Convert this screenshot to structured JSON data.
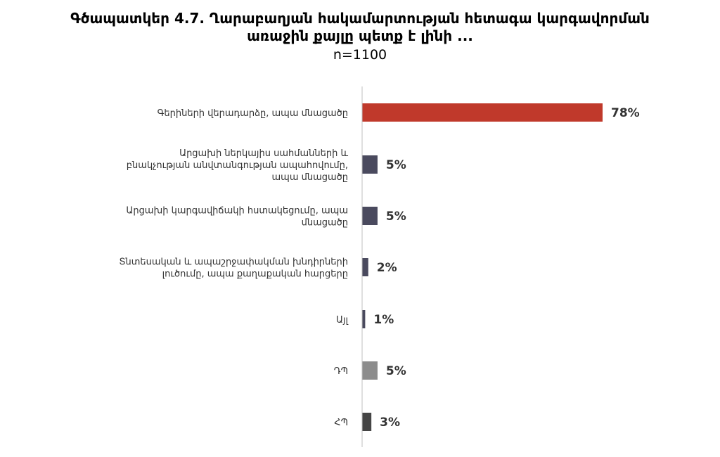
{
  "chart_data": {
    "type": "bar",
    "orientation": "horizontal",
    "title_line1": "Գծապատկեր 4.7. Ղարաբաղյան հակամարտության հետագա կարգավորման",
    "title_line2": "առաջին քայլը պետք է լինի ...",
    "subtitle": "n=1100",
    "categories": [
      [
        "Գերիների վերադարձը, ապա մնացածը"
      ],
      [
        "Արցախի ներկայիս սահմանների և",
        "բնակչության անվտանգության ապահովումը,",
        "ապա մնացածը"
      ],
      [
        "Արցախի կարգավիճակի հստակեցումը, ապա",
        "մնացածը"
      ],
      [
        "Տնտեսական և ապաշրջափակման խնդիրների",
        "լուծումը, ապա քաղաքական հարցերը"
      ],
      [
        "Այլ"
      ],
      [
        "ԴՊ"
      ],
      [
        "ՀՊ"
      ]
    ],
    "values": [
      78,
      5,
      5,
      2,
      1,
      5,
      3
    ],
    "value_labels": [
      "78%",
      "5%",
      "5%",
      "2%",
      "1%",
      "5%",
      "3%"
    ],
    "colors": [
      "#C0392B",
      "#4A4A5E",
      "#4A4A5E",
      "#4A4A5E",
      "#4A4A5E",
      "#8C8C8C",
      "#454545"
    ],
    "xlim": [
      0,
      100
    ],
    "grid": false,
    "legend": "none"
  }
}
